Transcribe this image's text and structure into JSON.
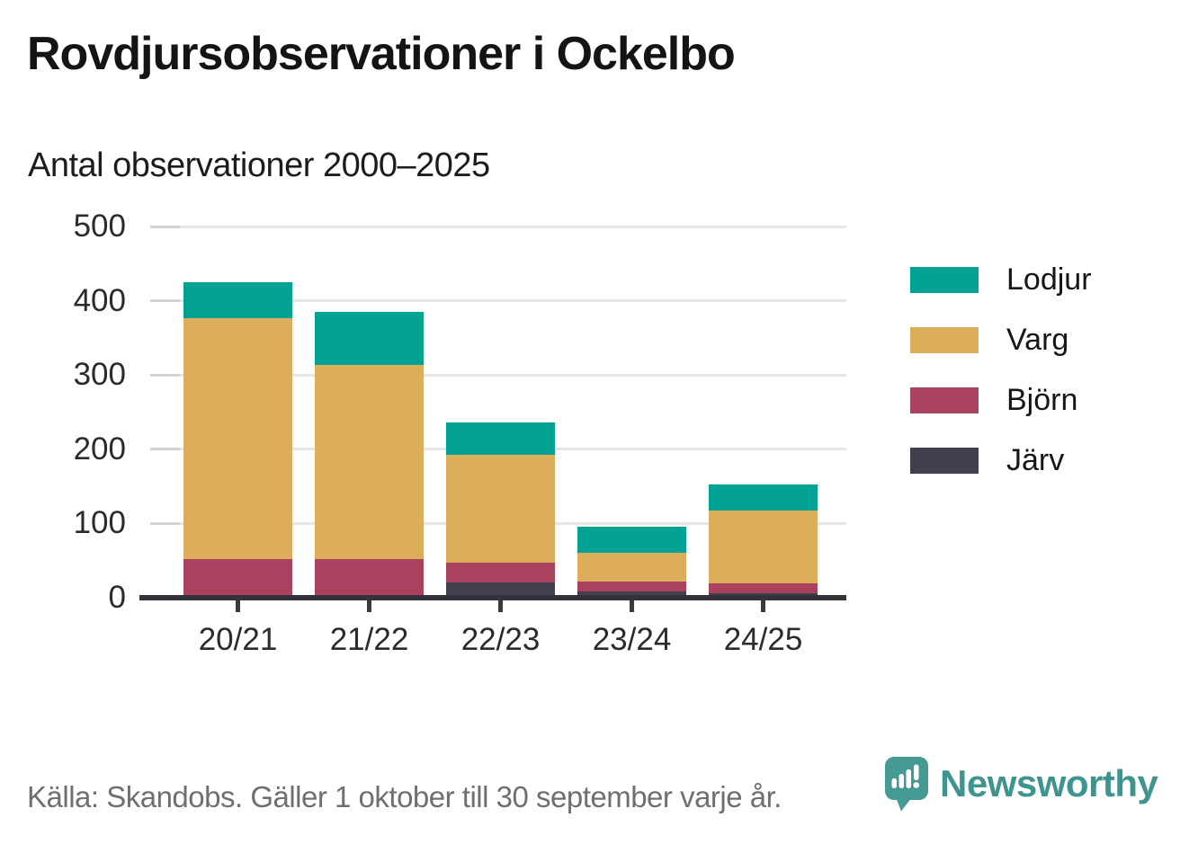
{
  "header": {
    "title": "Rovdjursobservationer i Ockelbo",
    "subtitle": "Antal observationer 2000–2025"
  },
  "chart_data": {
    "type": "bar",
    "stacked": true,
    "title": "Rovdjursobservationer i Ockelbo",
    "subtitle": "Antal observationer 2000–2025",
    "xlabel": "",
    "ylabel": "",
    "categories": [
      "20/21",
      "21/22",
      "22/23",
      "23/24",
      "24/25"
    ],
    "series": [
      {
        "name": "Järv",
        "color": "#433f4f",
        "values": [
          2,
          4,
          20,
          8,
          6
        ]
      },
      {
        "name": "Björn",
        "color": "#a8425f",
        "values": [
          50,
          48,
          27,
          14,
          13
        ]
      },
      {
        "name": "Varg",
        "color": "#dcae5c",
        "values": [
          325,
          261,
          146,
          38,
          99
        ]
      },
      {
        "name": "Lodjur",
        "color": "#02a294",
        "values": [
          48,
          72,
          43,
          36,
          34
        ]
      }
    ],
    "totals": [
      425,
      385,
      236,
      96,
      152
    ],
    "ylim": [
      0,
      500
    ],
    "y_ticks": [
      0,
      100,
      200,
      300,
      400,
      500
    ],
    "grid": "horizontal",
    "legend_position": "right",
    "legend_order": [
      "Lodjur",
      "Varg",
      "Björn",
      "Järv"
    ]
  },
  "colors": {
    "gridline": "#e6e6e6",
    "axis": "#34333a",
    "brand_teal": "#3e948f",
    "bubble_teal": "#459a94"
  },
  "footer": {
    "source": "Källa: Skandobs. Gäller 1 oktober till 30 september varje år.",
    "brand": "Newsworthy",
    "brand_icon": "newsworthy-speech-bubble-bar-chart-icon"
  }
}
